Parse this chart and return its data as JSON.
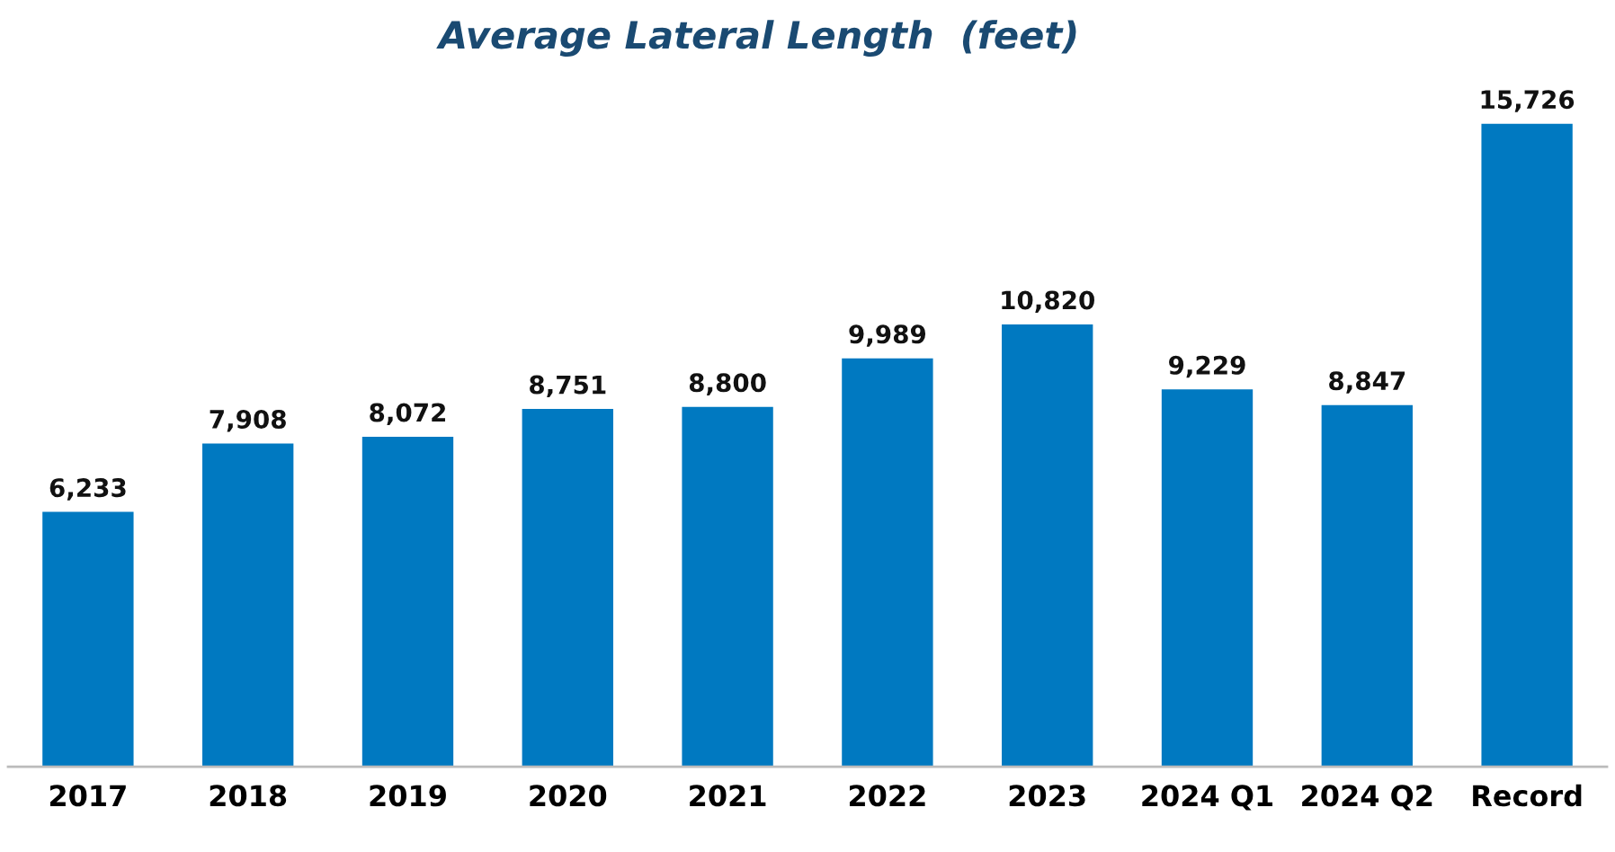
{
  "chart_data": {
    "type": "bar",
    "title": "Average Lateral Length  (feet)",
    "categories": [
      "2017",
      "2018",
      "2019",
      "2020",
      "2021",
      "2022",
      "2023",
      "2024 Q1",
      "2024 Q2",
      "Record"
    ],
    "values": [
      6233,
      7908,
      8072,
      8751,
      8800,
      9989,
      10820,
      9229,
      8847,
      15726
    ],
    "value_labels": [
      "6,233",
      "7,908",
      "8,072",
      "8,751",
      "8,800",
      "9,989",
      "10,820",
      "9,229",
      "8,847",
      "15,726"
    ],
    "color": "#0079c1",
    "grid": false,
    "legend": false,
    "tick_labels": "x"
  }
}
